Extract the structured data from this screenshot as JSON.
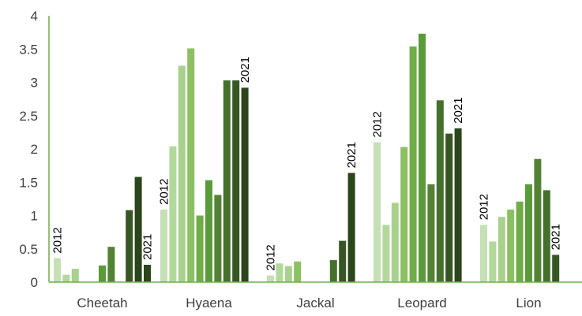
{
  "chart_data": {
    "type": "bar",
    "title": "",
    "xlabel": "",
    "ylabel": "",
    "ylim": [
      0,
      4
    ],
    "yticks": [
      "0",
      "0.5",
      "1",
      "1.5",
      "2",
      "2.5",
      "3",
      "3.5",
      "4"
    ],
    "grid": false,
    "legend": "none",
    "categories": [
      "Cheetah",
      "Hyaena",
      "Jackal",
      "Leopard",
      "Lion"
    ],
    "series_colors": [
      "#c5e0b4",
      "#b3d89c",
      "#a9d18e",
      "#8cc063",
      "#70ad47",
      "#5a9a3a",
      "#548235",
      "#44702c",
      "#375623",
      "#2a461a"
    ],
    "series": [
      {
        "values": [
          0.36,
          1.09,
          0.1,
          2.1,
          0.86
        ]
      },
      {
        "values": [
          0.11,
          2.04,
          0.28,
          0.86,
          0.61
        ]
      },
      {
        "values": [
          0.2,
          3.25,
          0.24,
          1.19,
          0.98
        ]
      },
      {
        "values": [
          0.0,
          3.51,
          0.31,
          2.03,
          1.09
        ]
      },
      {
        "values": [
          0.0,
          1.0,
          0.0,
          3.54,
          1.21
        ]
      },
      {
        "values": [
          0.25,
          1.53,
          0.0,
          3.73,
          1.47
        ]
      },
      {
        "values": [
          0.53,
          1.31,
          0.0,
          1.47,
          1.85
        ]
      },
      {
        "values": [
          0.0,
          3.03,
          0.33,
          2.73,
          1.38
        ]
      },
      {
        "values": [
          1.08,
          3.03,
          0.62,
          2.23,
          0.41
        ]
      },
      {
        "values": [
          1.58,
          2.92,
          1.64,
          2.31,
          0.0
        ]
      },
      {
        "values": [
          0.26,
          0.0,
          0.0,
          0.0,
          0.0
        ]
      }
    ],
    "bar_color_index": [
      [
        0,
        1,
        2,
        3,
        4,
        5,
        6,
        7,
        8,
        9,
        9
      ],
      [
        0,
        1,
        2,
        3,
        4,
        5,
        6,
        7,
        8,
        9,
        9
      ],
      [
        0,
        1,
        2,
        3,
        4,
        5,
        6,
        7,
        8,
        9,
        9
      ],
      [
        0,
        1,
        2,
        3,
        4,
        5,
        6,
        7,
        8,
        9,
        9
      ],
      [
        0,
        1,
        2,
        3,
        4,
        5,
        6,
        7,
        8,
        9,
        9
      ]
    ],
    "annotations": [
      {
        "category": "Cheetah",
        "start_label": "2012",
        "end_label": "2021"
      },
      {
        "category": "Hyaena",
        "start_label": "2012",
        "end_label": "2021"
      },
      {
        "category": "Jackal",
        "start_label": "2012",
        "end_label": "2021"
      },
      {
        "category": "Leopard",
        "start_label": "2012",
        "end_label": "2021"
      },
      {
        "category": "Lion",
        "start_label": "2012",
        "end_label": "2021"
      }
    ]
  }
}
